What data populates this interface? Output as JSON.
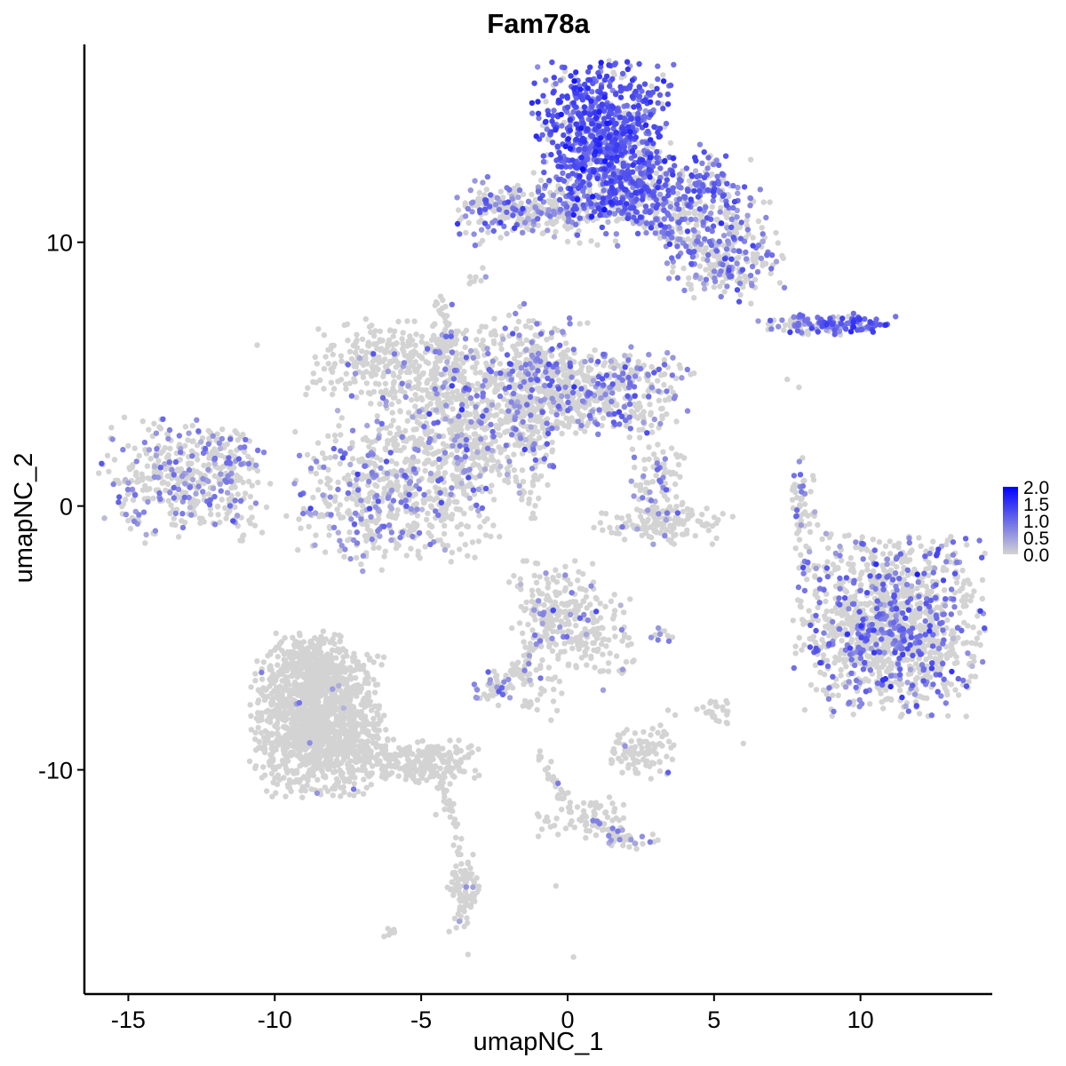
{
  "chart_data": {
    "type": "scatter",
    "title": "Fam78a",
    "xlabel": "umapNC_1",
    "ylabel": "umapNC_2",
    "xlim": [
      -16.5,
      14.5
    ],
    "ylim": [
      -18.5,
      17.5
    ],
    "x_ticks": [
      -15,
      -10,
      -5,
      0,
      5,
      10
    ],
    "y_ticks": [
      -10,
      0,
      10
    ],
    "x_tick_labels": [
      "-15",
      "-10",
      "-5",
      "0",
      "5",
      "10"
    ],
    "y_tick_labels": [
      "-10",
      "0",
      "10"
    ],
    "grid": false,
    "legend": {
      "placement": "right",
      "ticks": [
        2.0,
        1.5,
        1.0,
        0.5,
        0.0
      ],
      "labels": [
        "2.0",
        "1.5",
        "1.0",
        "0.5",
        "0.0"
      ],
      "range": [
        0,
        2.0
      ],
      "low_color": "#d3d3d3",
      "high_color": "#0000ff"
    },
    "clusters": [
      {
        "cx": -13.0,
        "cy": 1.0,
        "sx": 1.4,
        "sy": 1.1,
        "n": 420,
        "expr_frac": 0.28,
        "expr_mean": 0.7
      },
      {
        "cx": -11.6,
        "cy": 2.0,
        "sx": 0.4,
        "sy": 0.5,
        "n": 30,
        "expr_frac": 0.2,
        "expr_mean": 0.6
      },
      {
        "cx": -6.0,
        "cy": 0.6,
        "sx": 1.7,
        "sy": 1.4,
        "n": 600,
        "expr_frac": 0.22,
        "expr_mean": 0.7
      },
      {
        "cx": -6.2,
        "cy": 5.5,
        "sx": 1.3,
        "sy": 0.8,
        "n": 280,
        "expr_frac": 0.05,
        "expr_mean": 0.6
      },
      {
        "cx": -3.5,
        "cy": 3.5,
        "sx": 1.4,
        "sy": 1.5,
        "n": 500,
        "expr_frac": 0.16,
        "expr_mean": 0.7
      },
      {
        "cx": -1.2,
        "cy": 4.6,
        "sx": 1.0,
        "sy": 1.4,
        "n": 380,
        "expr_frac": 0.22,
        "expr_mean": 0.8
      },
      {
        "cx": 1.2,
        "cy": 4.3,
        "sx": 1.5,
        "sy": 0.8,
        "n": 420,
        "expr_frac": 0.24,
        "expr_mean": 0.8
      },
      {
        "cx": -4.3,
        "cy": 6.5,
        "sx": 0.2,
        "sy": 0.9,
        "n": 30,
        "expr_frac": 0.15,
        "expr_mean": 0.7
      },
      {
        "cx": -1.3,
        "cy": 11.2,
        "sx": 1.2,
        "sy": 0.6,
        "n": 220,
        "expr_frac": 0.35,
        "expr_mean": 0.8
      },
      {
        "cx": 1.3,
        "cy": 11.3,
        "sx": 1.2,
        "sy": 0.35,
        "n": 100,
        "expr_frac": 0.4,
        "expr_mean": 0.8
      },
      {
        "cx": 1.2,
        "cy": 14.0,
        "sx": 1.1,
        "sy": 1.4,
        "n": 800,
        "expr_frac": 0.85,
        "expr_mean": 1.15
      },
      {
        "cx": 3.5,
        "cy": 11.8,
        "sx": 1.4,
        "sy": 0.9,
        "n": 400,
        "expr_frac": 0.55,
        "expr_mean": 0.95
      },
      {
        "cx": 5.3,
        "cy": 9.6,
        "sx": 1.0,
        "sy": 0.9,
        "n": 260,
        "expr_frac": 0.35,
        "expr_mean": 0.8
      },
      {
        "cx": -3.1,
        "cy": 8.7,
        "sx": 0.2,
        "sy": 0.2,
        "n": 8,
        "expr_frac": 0.2,
        "expr_mean": 0.6
      },
      {
        "cx": 9.3,
        "cy": 6.9,
        "sx": 0.9,
        "sy": 0.2,
        "n": 110,
        "expr_frac": 0.7,
        "expr_mean": 1.05
      },
      {
        "cx": 7.6,
        "cy": 6.9,
        "sx": 0.5,
        "sy": 0.15,
        "n": 30,
        "expr_frac": 0.5,
        "expr_mean": 0.9
      },
      {
        "cx": 3.1,
        "cy": 0.8,
        "sx": 0.5,
        "sy": 0.8,
        "n": 90,
        "expr_frac": 0.3,
        "expr_mean": 0.8
      },
      {
        "cx": 3.3,
        "cy": -0.7,
        "sx": 1.1,
        "sy": 0.35,
        "n": 130,
        "expr_frac": 0.02,
        "expr_mean": 0.5
      },
      {
        "cx": 8.1,
        "cy": -0.2,
        "sx": 0.2,
        "sy": 1.0,
        "n": 45,
        "expr_frac": 0.2,
        "expr_mean": 0.7
      },
      {
        "cx": 11.0,
        "cy": -4.5,
        "sx": 1.5,
        "sy": 1.6,
        "n": 1300,
        "expr_frac": 0.24,
        "expr_mean": 0.9
      },
      {
        "cx": -0.5,
        "cy": -3.8,
        "sx": 0.7,
        "sy": 0.8,
        "n": 160,
        "expr_frac": 0.12,
        "expr_mean": 0.7
      },
      {
        "cx": 0.8,
        "cy": -5.0,
        "sx": 0.8,
        "sy": 0.9,
        "n": 130,
        "expr_frac": 0.05,
        "expr_mean": 0.6
      },
      {
        "cx": -1.3,
        "cy": -6.6,
        "sx": 0.45,
        "sy": 0.7,
        "n": 50,
        "expr_frac": 0.1,
        "expr_mean": 0.7
      },
      {
        "cx": -2.5,
        "cy": -6.9,
        "sx": 0.35,
        "sy": 0.3,
        "n": 45,
        "expr_frac": 0.4,
        "expr_mean": 0.8
      },
      {
        "cx": 2.4,
        "cy": -9.4,
        "sx": 0.6,
        "sy": 0.45,
        "n": 90,
        "expr_frac": 0.05,
        "expr_mean": 0.6
      },
      {
        "cx": 5.0,
        "cy": -7.7,
        "sx": 0.3,
        "sy": 0.25,
        "n": 25,
        "expr_frac": 0.0,
        "expr_mean": 0.5
      },
      {
        "cx": 3.3,
        "cy": -4.9,
        "sx": 0.25,
        "sy": 0.15,
        "n": 10,
        "expr_frac": 0.5,
        "expr_mean": 0.8
      },
      {
        "cx": -8.5,
        "cy": -8.2,
        "sx": 1.1,
        "sy": 1.3,
        "n": 1300,
        "expr_frac": 0.004,
        "expr_mean": 0.6
      },
      {
        "cx": -8.7,
        "cy": -6.0,
        "sx": 0.7,
        "sy": 0.6,
        "n": 300,
        "expr_frac": 0.004,
        "expr_mean": 0.6
      },
      {
        "cx": -5.0,
        "cy": -9.7,
        "sx": 0.9,
        "sy": 0.4,
        "n": 220,
        "expr_frac": 0.0,
        "expr_mean": 0.5
      },
      {
        "cx": -3.5,
        "cy": -14.7,
        "sx": 0.3,
        "sy": 0.7,
        "n": 80,
        "expr_frac": 0.02,
        "expr_mean": 0.6
      },
      {
        "cx": -6.0,
        "cy": -16.2,
        "sx": 0.15,
        "sy": 0.1,
        "n": 8,
        "expr_frac": 0.0,
        "expr_mean": 0.5
      },
      {
        "cx": 0.6,
        "cy": -11.8,
        "sx": 0.8,
        "sy": 0.4,
        "n": 60,
        "expr_frac": 0.05,
        "expr_mean": 0.6
      },
      {
        "cx": 2.0,
        "cy": -12.7,
        "sx": 0.5,
        "sy": 0.2,
        "n": 25,
        "expr_frac": 0.2,
        "expr_mean": 0.7
      }
    ],
    "strands": [
      {
        "from": [
          -4.3,
          7.5
        ],
        "to": [
          -3.5,
          4.0
        ],
        "n": 35,
        "expr_frac": 0.2
      },
      {
        "from": [
          -3.6,
          4.2
        ],
        "to": [
          -3.7,
          -0.3
        ],
        "n": 40,
        "expr_frac": 0.12
      },
      {
        "from": [
          -3.4,
          2.6
        ],
        "to": [
          -1.2,
          0.3
        ],
        "n": 35,
        "expr_frac": 0.1
      },
      {
        "from": [
          -1.0,
          0.2
        ],
        "to": [
          -1.1,
          -0.6
        ],
        "n": 6,
        "expr_frac": 0.0
      },
      {
        "from": [
          -1.1,
          4.0
        ],
        "to": [
          -1.2,
          0.9
        ],
        "n": 30,
        "expr_frac": 0.15
      },
      {
        "from": [
          -3.5,
          11.5
        ],
        "to": [
          0.3,
          11.1
        ],
        "n": 60,
        "expr_frac": 0.3
      },
      {
        "from": [
          2.4,
          10.7
        ],
        "to": [
          4.7,
          9.8
        ],
        "n": 30,
        "expr_frac": 0.3
      },
      {
        "from": [
          5.0,
          9.2
        ],
        "to": [
          6.1,
          8.3
        ],
        "n": 20,
        "expr_frac": 0.2
      },
      {
        "from": [
          -0.4,
          -3.9
        ],
        "to": [
          -1.8,
          -6.5
        ],
        "n": 40,
        "expr_frac": 0.1
      },
      {
        "from": [
          -10.3,
          -8.8
        ],
        "to": [
          -6.0,
          -9.6
        ],
        "n": 60,
        "expr_frac": 0.0
      },
      {
        "from": [
          -4.3,
          -10.4
        ],
        "to": [
          -3.5,
          -14.0
        ],
        "n": 35,
        "expr_frac": 0.0
      },
      {
        "from": [
          -1.0,
          -9.3
        ],
        "to": [
          0.0,
          -11.5
        ],
        "n": 30,
        "expr_frac": 0.1
      },
      {
        "from": [
          0.6,
          -11.9
        ],
        "to": [
          2.0,
          -12.6
        ],
        "n": 25,
        "expr_frac": 0.1
      },
      {
        "from": [
          7.8,
          0.8
        ],
        "to": [
          7.9,
          -1.5
        ],
        "n": 12,
        "expr_frac": 0.1
      },
      {
        "from": [
          3.2,
          -9.2
        ],
        "to": [
          3.5,
          -7.8
        ],
        "n": 8,
        "expr_frac": 0.0
      },
      {
        "from": [
          8.0,
          -1.8
        ],
        "to": [
          8.6,
          -3.5
        ],
        "n": 8,
        "expr_frac": 0.1
      },
      {
        "from": [
          -11.3,
          2.2
        ],
        "to": [
          -10.6,
          1.4
        ],
        "n": 12,
        "expr_frac": 0.1
      }
    ],
    "outliers": [
      [
        -10.6,
        6.1
      ],
      [
        -2.2,
        11.0
      ],
      [
        7.5,
        4.8
      ],
      [
        7.9,
        4.5
      ],
      [
        6.0,
        -9.0
      ],
      [
        4.8,
        -7.8
      ],
      [
        -0.8,
        -7.0
      ],
      [
        -0.2,
        -7.1
      ],
      [
        -8.0,
        -7.2
      ],
      [
        -9.0,
        -9.7
      ],
      [
        -3.4,
        -17.0
      ],
      [
        -0.4,
        -14.4
      ],
      [
        0.2,
        -17.1
      ],
      [
        -4.2,
        -11.5
      ],
      [
        3.1,
        10.9
      ],
      [
        3.8,
        11.0
      ],
      [
        5.0,
        8.3
      ],
      [
        -4.5,
        -11.7
      ]
    ],
    "noise": [
      {
        "cx": 0.0,
        "cy": 1.0,
        "sx": 14.0,
        "sy": 11.0,
        "n": 0
      }
    ]
  }
}
